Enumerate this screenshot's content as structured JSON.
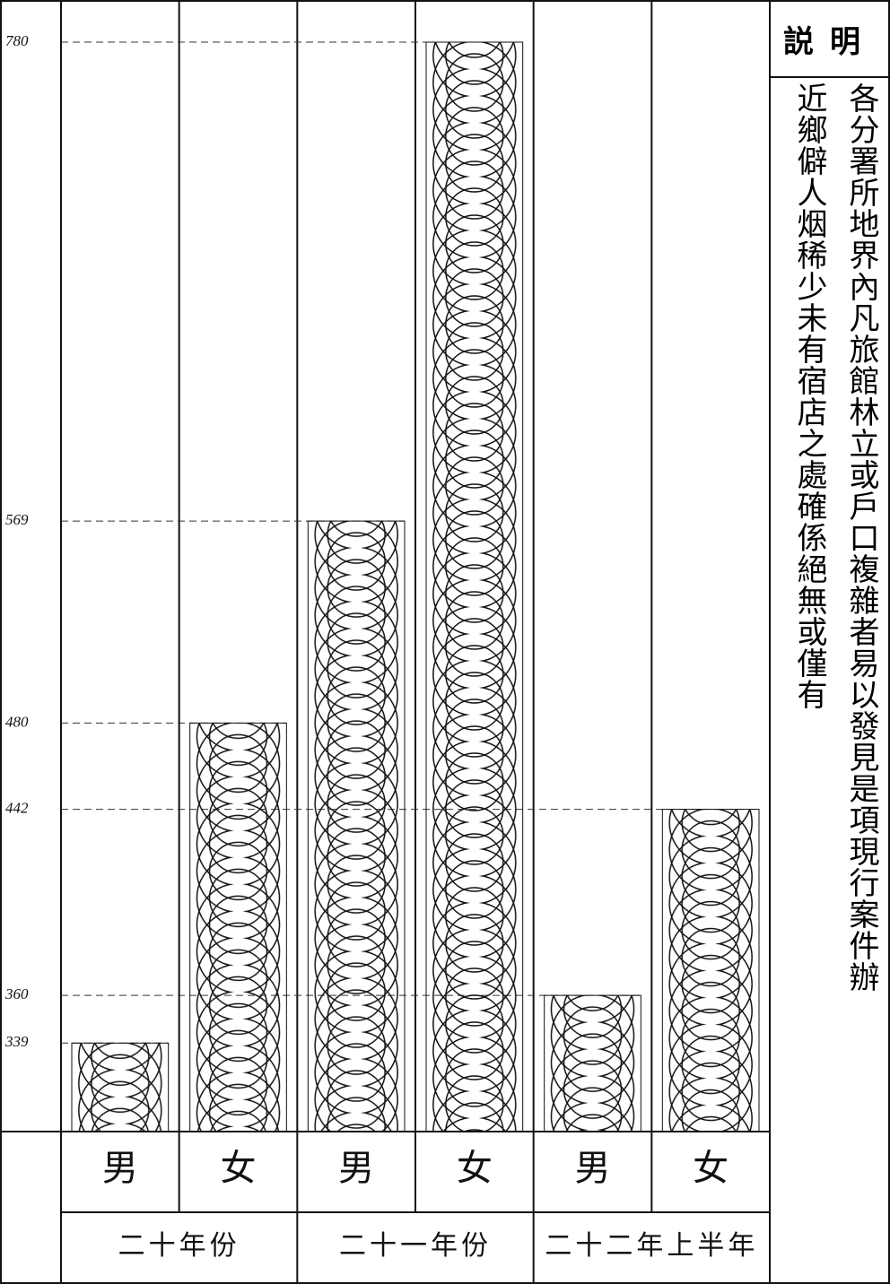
{
  "chart_data": {
    "type": "bar",
    "categories": [
      "男",
      "女",
      "男",
      "女",
      "男",
      "女"
    ],
    "groups": [
      "二十年份",
      "二十一年份",
      "二十二年上半年"
    ],
    "values": [
      339,
      480,
      569,
      780,
      360,
      442
    ],
    "color": "#111111",
    "ylim": [
      300,
      780
    ],
    "yticks": [
      339,
      360,
      442,
      480,
      569,
      780
    ],
    "grid": true
  },
  "note": {
    "title": "説明",
    "columns": [
      "各分署所地界內凡旅館林立或戶口複雜者易以發見是項現行案件辦",
      "近鄉僻人烟稀少未有宿店之處確係絕無或僅有"
    ]
  }
}
